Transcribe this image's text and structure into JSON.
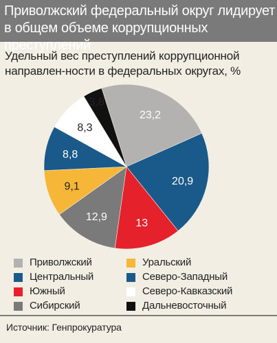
{
  "title": "Приволжский федеральный округ лидирует в общем объеме  коррупционных преступлений",
  "subtitle": "Удельный вес преступлений коррупционной направлен-ности в федеральных округах, %",
  "source": "Источник: Генпрокуратура",
  "chart_data": {
    "type": "pie",
    "slices": [
      {
        "label": "Приволжский",
        "value": 23.2,
        "display": "23,2",
        "color": "#b3b2b0",
        "text_color": "#ffffff"
      },
      {
        "label": "Северо-Западный",
        "value": 20.9,
        "display": "20,9",
        "color": "#1a5a8a",
        "text_color": "#ffffff"
      },
      {
        "label": "Южный",
        "value": 13,
        "display": "13",
        "color": "#e5222b",
        "text_color": "#ffffff"
      },
      {
        "label": "Сибирский",
        "value": 12.9,
        "display": "12,9",
        "color": "#7a7a7a",
        "text_color": "#ffffff"
      },
      {
        "label": "Уральский",
        "value": 9.1,
        "display": "9,1",
        "color": "#f6b738",
        "text_color": "#222222"
      },
      {
        "label": "Центральный",
        "value": 8.8,
        "display": "8,8",
        "color": "#1a5a8a",
        "text_color": "#ffffff"
      },
      {
        "label": "Северо-Кавказский",
        "value": 8.3,
        "display": "8,3",
        "color": "#ffffff",
        "text_color": "#222222"
      },
      {
        "label": "Дальневосточный",
        "value": 3.8,
        "display": "3,8",
        "color": "#111111",
        "text_color": "#222222"
      }
    ]
  },
  "legend": [
    {
      "label": "Приволжский",
      "color": "#b3b2b0"
    },
    {
      "label": "Центральный",
      "color": "#1a5a8a"
    },
    {
      "label": "Южный",
      "color": "#e5222b"
    },
    {
      "label": "Сибирский",
      "color": "#7a7a7a"
    },
    {
      "label": "Уральский",
      "color": "#f6b738"
    },
    {
      "label": "Северо-Западный",
      "color": "#1a5a8a"
    },
    {
      "label": "Северо-Кавказский",
      "color": "#ffffff"
    },
    {
      "label": "Дальневосточный",
      "color": "#111111"
    }
  ]
}
